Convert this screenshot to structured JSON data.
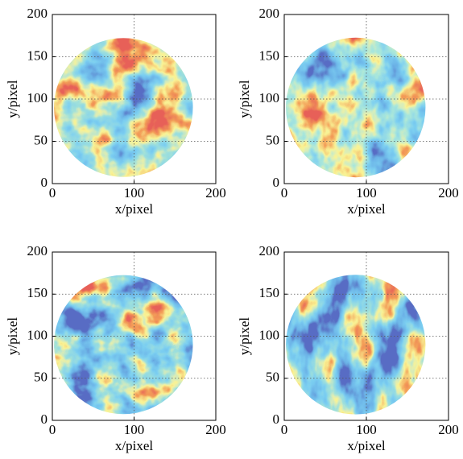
{
  "chart_data": [
    {
      "type": "heatmap",
      "xlabel": "x/pixel",
      "ylabel": "y/pixel",
      "xlim": [
        0,
        200
      ],
      "ylim": [
        0,
        200
      ],
      "xticks": [
        0,
        100,
        200
      ],
      "yticks": [
        0,
        50,
        100,
        150,
        200
      ],
      "grid": true
    },
    {
      "type": "heatmap",
      "xlabel": "x/pixel",
      "ylabel": "y/pixel",
      "xlim": [
        0,
        200
      ],
      "ylim": [
        0,
        200
      ],
      "xticks": [
        0,
        100,
        200
      ],
      "yticks": [
        0,
        50,
        100,
        150,
        200
      ],
      "grid": true
    },
    {
      "type": "heatmap",
      "xlabel": "x/pixel",
      "ylabel": "y/pixel",
      "xlim": [
        0,
        200
      ],
      "ylim": [
        0,
        200
      ],
      "xticks": [
        0,
        100,
        200
      ],
      "yticks": [
        0,
        50,
        100,
        150,
        200
      ],
      "grid": true
    },
    {
      "type": "heatmap",
      "xlabel": "x/pixel",
      "ylabel": "y/pixel",
      "xlim": [
        0,
        200
      ],
      "ylim": [
        0,
        200
      ],
      "xticks": [
        0,
        100,
        200
      ],
      "yticks": [
        0,
        50,
        100,
        150,
        200
      ],
      "grid": true
    }
  ]
}
